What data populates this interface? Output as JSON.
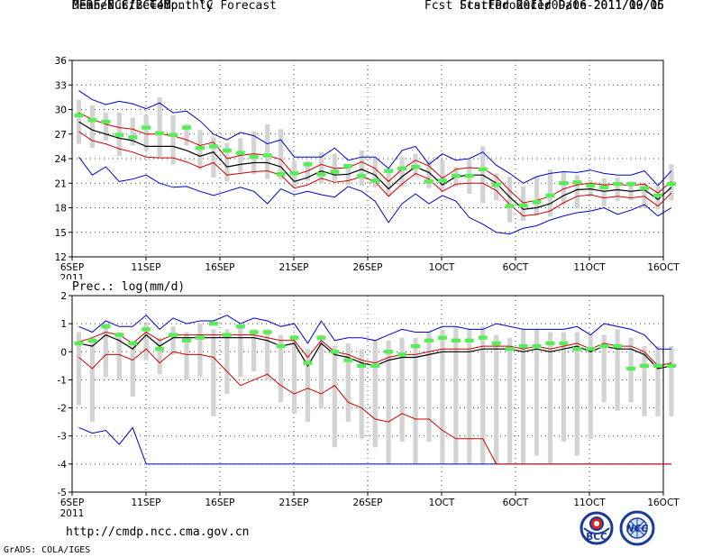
{
  "header": {
    "title": "DERF/NCC/BCC Monthly Forecast",
    "member_size": "Member Size=40",
    "variable": "Mean Surf. Temp.: °C",
    "period": "For 2011/09/06-2011/10/15",
    "refer_date": "Fcst Started Refer Date 2011/09/05",
    "produced_date": "Fcst Produced Date 2011/09/06"
  },
  "footer": {
    "url": "http://cmdp.ncc.cma.gov.cn",
    "credit": "GrADS: COLA/IGES",
    "logo1_text": "BCC",
    "logo2_text": "NCC"
  },
  "colors": {
    "grid": "#444444",
    "box": "#d3d3d3",
    "median": "#55ee55",
    "mean": "#000000",
    "band": "#cc0000",
    "extreme": "#0000cc"
  },
  "chart_data": [
    {
      "type": "line",
      "title": "Mean Surf. Temp.: °C",
      "xlabel": "",
      "ylabel": "°C",
      "ylim": [
        12,
        36
      ],
      "yticks": [
        12,
        15,
        18,
        21,
        24,
        27,
        30,
        33,
        36
      ],
      "x_tick_days": [
        1,
        6,
        11,
        16,
        21,
        26,
        31,
        36,
        41
      ],
      "x_tick_labels": [
        "6SEP",
        "11SEP",
        "16SEP",
        "21SEP",
        "26SEP",
        "1OCT",
        "6OCT",
        "11OCT",
        "16OCT"
      ],
      "x_year_label": "2011",
      "x_range_days": [
        1,
        41
      ],
      "series": [
        {
          "name": "ensemble mean",
          "values": [
            28.5,
            27.5,
            27.0,
            26.5,
            26.2,
            25.5,
            25.5,
            25.5,
            25.0,
            24.3,
            24.8,
            23.0,
            23.3,
            23.5,
            23.5,
            23.0,
            21.2,
            21.7,
            22.5,
            22.0,
            22.1,
            22.7,
            22.0,
            20.3,
            21.8,
            23.0,
            22.3,
            20.8,
            21.8,
            22.0,
            22.0,
            21.0,
            19.3,
            17.8,
            18.0,
            18.5,
            19.5,
            20.2,
            20.3,
            20.0,
            20.2,
            20.0,
            20.2,
            19.0,
            20.5
          ]
        },
        {
          "name": "upper band",
          "values": [
            29.6,
            28.8,
            28.2,
            27.8,
            27.6,
            27.0,
            27.0,
            26.8,
            26.3,
            25.6,
            26.0,
            24.0,
            24.4,
            24.6,
            24.4,
            23.9,
            22.0,
            22.5,
            23.3,
            22.8,
            22.9,
            23.6,
            22.8,
            21.2,
            22.7,
            23.8,
            23.1,
            21.6,
            22.7,
            22.9,
            22.8,
            21.8,
            20.1,
            18.6,
            18.9,
            19.4,
            20.3,
            20.8,
            21.0,
            20.8,
            20.9,
            20.7,
            20.9,
            19.8,
            21.2
          ]
        },
        {
          "name": "lower band",
          "values": [
            27.3,
            26.2,
            25.8,
            25.2,
            24.8,
            24.2,
            24.1,
            24.1,
            23.6,
            22.9,
            23.5,
            22.0,
            22.2,
            22.4,
            22.5,
            22.0,
            20.4,
            20.8,
            21.6,
            21.1,
            21.3,
            21.8,
            21.2,
            19.4,
            20.9,
            22.2,
            21.5,
            20.0,
            20.9,
            21.0,
            21.0,
            20.1,
            18.4,
            17.0,
            17.2,
            17.6,
            18.6,
            19.4,
            19.6,
            19.2,
            19.4,
            19.2,
            19.4,
            18.2,
            19.8
          ]
        },
        {
          "name": "ensemble max",
          "values": [
            32.3,
            31.2,
            30.6,
            31.0,
            30.7,
            30.1,
            30.8,
            29.6,
            29.8,
            28.6,
            27.0,
            26.3,
            27.2,
            26.8,
            25.8,
            26.3,
            24.2,
            24.2,
            24.2,
            25.3,
            23.8,
            24.2,
            24.2,
            22.8,
            25.0,
            25.5,
            23.3,
            24.6,
            23.8,
            24.0,
            24.8,
            23.2,
            22.2,
            21.0,
            21.8,
            22.2,
            22.4,
            22.3,
            22.6,
            22.2,
            22.0,
            22.0,
            22.5,
            20.7,
            22.5
          ]
        },
        {
          "name": "ensemble min",
          "values": [
            24.2,
            22.0,
            23.0,
            21.2,
            21.5,
            22.0,
            21.0,
            20.5,
            20.6,
            20.0,
            19.5,
            20.0,
            20.5,
            20.0,
            18.5,
            20.3,
            19.6,
            20.0,
            19.6,
            19.3,
            20.6,
            20.0,
            18.8,
            16.2,
            18.5,
            19.7,
            18.5,
            19.5,
            18.8,
            16.8,
            16.0,
            15.0,
            14.8,
            15.5,
            15.8,
            16.5,
            17.0,
            17.4,
            17.6,
            18.0,
            17.2,
            17.7,
            18.4,
            17.0,
            18.0
          ]
        },
        {
          "name": "median",
          "values": [
            29.3,
            28.7,
            28.5,
            26.9,
            26.6,
            27.8,
            27.1,
            26.9,
            27.8,
            25.3,
            25.5,
            25.0,
            24.7,
            24.2,
            24.4,
            22.1,
            22.2,
            23.3,
            22.1,
            22.4,
            23.1,
            21.9,
            21.3,
            22.5,
            22.8,
            23.0,
            21.2,
            21.3,
            21.9,
            21.9,
            22.7,
            20.8,
            18.2,
            18.3,
            18.7,
            19.5,
            21.0,
            21.1,
            20.7,
            20.5,
            20.9,
            20.9,
            20.4,
            19.5,
            20.9
          ]
        },
        {
          "name": "box high",
          "values": [
            31.2,
            30.5,
            29.6,
            29.6,
            29.0,
            29.3,
            31.5,
            29.3,
            28.2,
            27.5,
            26.6,
            25.9,
            26.5,
            27.3,
            28.2,
            27.6,
            23.7,
            23.7,
            24.8,
            24.6,
            23.3,
            25.0,
            24.0,
            22.4,
            24.2,
            24.6,
            23.8,
            23.8,
            23.0,
            23.9,
            25.5,
            22.2,
            21.8,
            20.6,
            21.8,
            22.7,
            22.4,
            22.0,
            21.4,
            21.6,
            21.7,
            21.2,
            21.0,
            20.6,
            23.3
          ]
        },
        {
          "name": "box low",
          "values": [
            25.8,
            25.3,
            26.2,
            24.3,
            25.6,
            25.0,
            24.2,
            23.3,
            25.6,
            22.7,
            21.7,
            21.2,
            22.3,
            22.1,
            21.5,
            21.5,
            20.6,
            21.3,
            21.0,
            21.3,
            20.8,
            20.7,
            20.5,
            19.4,
            20.6,
            21.8,
            20.4,
            20.2,
            20.6,
            19.7,
            18.6,
            18.9,
            16.2,
            16.4,
            17.0,
            16.9,
            18.4,
            17.9,
            19.5,
            18.2,
            18.8,
            18.9,
            18.0,
            17.8,
            18.9
          ]
        }
      ]
    },
    {
      "type": "line",
      "title": "Prec.: log(mm/d)",
      "xlabel": "",
      "ylabel": "log(mm/d)",
      "ylim": [
        -5,
        2
      ],
      "yticks": [
        -5,
        -4,
        -3,
        -2,
        -1,
        0,
        1,
        2
      ],
      "x_tick_days": [
        1,
        6,
        11,
        16,
        21,
        26,
        31,
        36,
        41
      ],
      "x_tick_labels": [
        "6SEP",
        "11SEP",
        "16SEP",
        "21SEP",
        "26SEP",
        "1OCT",
        "6OCT",
        "11OCT",
        "16OCT"
      ],
      "x_year_label": "2011",
      "x_range_days": [
        1,
        41
      ],
      "series": [
        {
          "name": "ensemble mean",
          "values": [
            0.3,
            0.2,
            0.6,
            0.4,
            0.1,
            0.6,
            0.2,
            0.5,
            0.5,
            0.5,
            0.5,
            0.5,
            0.5,
            0.5,
            0.4,
            0.2,
            0.3,
            -0.5,
            0.3,
            -0.1,
            -0.2,
            -0.4,
            -0.5,
            -0.3,
            -0.2,
            -0.2,
            -0.1,
            0.0,
            0.0,
            0.0,
            0.1,
            0.1,
            0.1,
            0.0,
            0.1,
            0.0,
            0.1,
            0.2,
            0.0,
            0.2,
            0.1,
            0.1,
            -0.1,
            -0.6,
            -0.5
          ]
        },
        {
          "name": "upper band",
          "values": [
            0.35,
            0.5,
            0.7,
            0.6,
            0.3,
            0.7,
            0.4,
            0.6,
            0.6,
            0.6,
            0.6,
            0.6,
            0.6,
            0.6,
            0.5,
            0.4,
            0.4,
            -0.2,
            0.4,
            0.0,
            -0.1,
            -0.3,
            -0.4,
            -0.2,
            -0.1,
            -0.1,
            0.0,
            0.1,
            0.1,
            0.1,
            0.2,
            0.2,
            0.2,
            0.1,
            0.2,
            0.1,
            0.2,
            0.3,
            0.1,
            0.3,
            0.2,
            0.2,
            0.0,
            -0.5,
            -0.4
          ]
        },
        {
          "name": "lower band",
          "values": [
            -0.2,
            -0.6,
            -0.1,
            -0.1,
            -0.3,
            0.1,
            -0.4,
            0.0,
            -0.1,
            -0.1,
            -0.2,
            -0.7,
            -1.2,
            -1.0,
            -0.8,
            -1.2,
            -1.5,
            -1.3,
            -1.5,
            -1.2,
            -1.8,
            -2.0,
            -2.4,
            -2.5,
            -2.2,
            -2.4,
            -2.4,
            -2.8,
            -3.1,
            -3.1,
            -3.1,
            -4.0,
            -4.0,
            -4.0,
            -4.0,
            -4.0,
            -4.0,
            -4.0,
            -4.0,
            -4.0,
            -4.0,
            -4.0,
            -4.0,
            -4.0,
            -4.0
          ]
        },
        {
          "name": "ensemble max",
          "values": [
            0.9,
            0.7,
            1.1,
            0.9,
            0.9,
            1.3,
            0.8,
            1.2,
            1.0,
            1.1,
            1.1,
            1.3,
            1.0,
            1.2,
            1.1,
            0.9,
            1.0,
            0.3,
            1.1,
            0.4,
            0.5,
            0.5,
            0.4,
            0.6,
            0.8,
            0.7,
            0.7,
            0.9,
            0.9,
            0.8,
            0.8,
            1.0,
            0.9,
            0.8,
            0.8,
            0.8,
            0.8,
            0.9,
            0.6,
            1.0,
            0.9,
            0.8,
            0.6,
            0.1,
            0.1
          ]
        },
        {
          "name": "ensemble min",
          "values": [
            -2.7,
            -2.9,
            -2.8,
            -3.3,
            -2.7,
            -4.0,
            -4.0,
            -4.0,
            -4.0,
            -4.0,
            -4.0,
            -4.0,
            -4.0,
            -4.0,
            -4.0,
            -4.0,
            -4.0,
            -4.0,
            -4.0,
            -4.0,
            -4.0,
            -4.0,
            -4.0,
            -4.0,
            -4.0,
            -4.0,
            -4.0,
            -4.0,
            -4.0,
            -4.0,
            -4.0,
            -4.0,
            -4.0,
            -4.0,
            -4.0,
            -4.0,
            -4.0,
            -4.0,
            -4.0,
            -4.0,
            -4.0,
            -4.0,
            -4.0,
            -4.0,
            -4.0
          ]
        },
        {
          "name": "median",
          "values": [
            0.3,
            0.4,
            0.9,
            0.6,
            0.3,
            0.8,
            0.1,
            0.6,
            0.4,
            0.5,
            1.0,
            0.6,
            0.9,
            0.7,
            0.7,
            0.2,
            0.5,
            -0.4,
            0.5,
            0.0,
            -0.3,
            -0.5,
            -0.5,
            0.0,
            -0.1,
            0.2,
            0.4,
            0.5,
            0.4,
            0.4,
            0.5,
            0.3,
            0.1,
            0.2,
            0.2,
            0.3,
            0.3,
            0.1,
            0.1,
            0.2,
            0.2,
            -0.6,
            -0.5,
            -0.5,
            -0.5
          ]
        },
        {
          "name": "box high",
          "values": [
            0.7,
            0.5,
            1.0,
            0.7,
            0.3,
            1.0,
            0.5,
            0.9,
            0.7,
            1.0,
            0.8,
            0.8,
            0.9,
            0.8,
            0.8,
            0.6,
            0.6,
            0.1,
            0.6,
            0.2,
            0.3,
            0.1,
            0.4,
            0.4,
            0.5,
            0.5,
            0.7,
            0.8,
            0.9,
            0.8,
            0.9,
            0.6,
            0.5,
            0.8,
            0.8,
            0.7,
            0.7,
            0.7,
            0.6,
            0.6,
            0.8,
            0.5,
            0.2,
            0.2,
            0.2
          ]
        },
        {
          "name": "box low",
          "values": [
            -1.9,
            -2.5,
            -0.9,
            -1.0,
            -1.6,
            -0.3,
            -0.8,
            -0.1,
            -1.0,
            -0.9,
            -2.3,
            -1.5,
            -0.9,
            -0.7,
            -1.0,
            -1.8,
            -2.2,
            -2.5,
            -2.0,
            -3.4,
            -2.5,
            -3.1,
            -3.4,
            -4.0,
            -3.2,
            -4.0,
            -3.2,
            -4.0,
            -4.0,
            -4.0,
            -4.0,
            -4.0,
            -4.0,
            -4.0,
            -3.7,
            -4.0,
            -3.2,
            -3.7,
            -3.1,
            -1.8,
            -2.1,
            -1.8,
            -2.3,
            -2.3,
            -2.3
          ]
        }
      ]
    }
  ]
}
